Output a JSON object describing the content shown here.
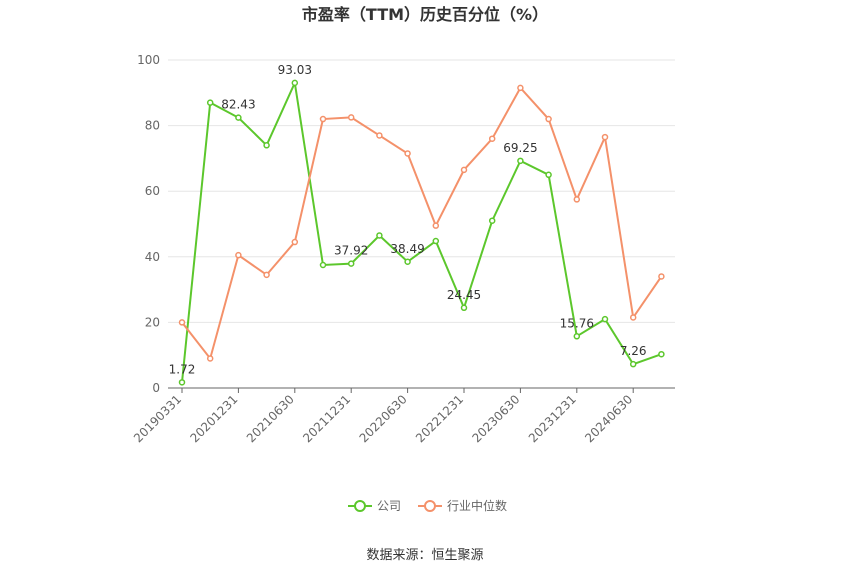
{
  "chart_data": {
    "type": "line",
    "title": "市盈率（TTM）历史百分位（%）",
    "categories": [
      "20190331",
      null,
      "20201231",
      null,
      "20210630",
      null,
      "20211231",
      null,
      "20220630",
      null,
      "20221231",
      null,
      "20230630",
      null,
      "20231231",
      null,
      "20240630",
      null
    ],
    "series": [
      {
        "name": "公司",
        "color": "#5cc72c",
        "values": [
          1.72,
          87,
          82.43,
          74,
          93.03,
          37.5,
          37.92,
          46.5,
          38.49,
          44.8,
          24.45,
          51,
          69.25,
          65,
          15.76,
          21,
          7.26,
          10.3
        ],
        "value_labels": [
          "1.72",
          null,
          "82.43",
          null,
          "93.03",
          null,
          "37.92",
          null,
          "38.49",
          null,
          "24.45",
          null,
          "69.25",
          null,
          "15.76",
          null,
          "7.26",
          null
        ]
      },
      {
        "name": "行业中位数",
        "color": "#f4916a",
        "values": [
          20,
          9,
          40.5,
          34.5,
          44.5,
          82,
          82.5,
          77,
          71.5,
          49.5,
          66.5,
          76,
          91.5,
          82,
          57.5,
          76.5,
          21.5,
          34
        ]
      }
    ],
    "ylim": [
      0,
      100
    ],
    "yticks": [
      0,
      20,
      40,
      60,
      80,
      100
    ],
    "grid": true,
    "legend": "bottom",
    "source": "数据来源：恒生聚源"
  }
}
